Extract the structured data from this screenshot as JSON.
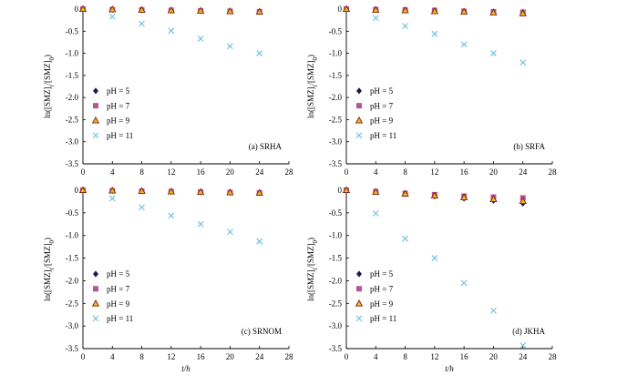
{
  "figure": {
    "x_axis_title": "t/h",
    "y_axis_title": "ln([SMZ]t/[SMZ]0)"
  },
  "colors": {
    "pH5": "#1f1a4a",
    "pH7": "#b5559a",
    "pH9_fill": "#f2b81b",
    "pH9_edge": "#7a2010",
    "pH11": "#6cc0d8",
    "axis": "#000000"
  },
  "legend_labels": [
    "pH = 5",
    "pH = 7",
    "pH = 9",
    "pH = 11"
  ],
  "chart_data": [
    {
      "type": "scatter",
      "panel_label": "(a) SRHA",
      "xlabel": "",
      "ylabel": "ln([SMZ]t/[SMZ]0)",
      "xlim": [
        0,
        28
      ],
      "ylim": [
        -3.5,
        0
      ],
      "x_ticks": [
        "0",
        "4",
        "8",
        "12",
        "16",
        "20",
        "24",
        "28"
      ],
      "y_ticks": [
        "0",
        "-0.5",
        "-1.0",
        "-1.5",
        "-2.0",
        "-2.5",
        "-3.0",
        "-3.5"
      ],
      "x": [
        0,
        4,
        8,
        12,
        16,
        20,
        24
      ],
      "series": [
        {
          "name": "pH = 5",
          "values": [
            0,
            -0.01,
            -0.02,
            -0.03,
            -0.04,
            -0.05,
            -0.06
          ]
        },
        {
          "name": "pH = 7",
          "values": [
            0,
            -0.01,
            -0.02,
            -0.03,
            -0.04,
            -0.05,
            -0.06
          ]
        },
        {
          "name": "pH = 9",
          "values": [
            0,
            -0.01,
            -0.02,
            -0.03,
            -0.04,
            -0.05,
            -0.06
          ]
        },
        {
          "name": "pH = 11",
          "values": [
            0,
            -0.17,
            -0.33,
            -0.49,
            -0.67,
            -0.84,
            -1.0
          ]
        }
      ],
      "legend_position": "lower-left",
      "grid": false
    },
    {
      "type": "scatter",
      "panel_label": "(b) SRFA",
      "xlabel": "",
      "ylabel": "ln([SMZ]t/[SMZ]0)",
      "xlim": [
        0,
        28
      ],
      "ylim": [
        -3.5,
        0
      ],
      "x_ticks": [
        "0",
        "4",
        "8",
        "12",
        "16",
        "20",
        "24",
        "28"
      ],
      "y_ticks": [
        "0",
        "-0.5",
        "-1.0",
        "-1.5",
        "-2.0",
        "-2.5",
        "-3.0",
        "-3.5"
      ],
      "x": [
        0,
        4,
        8,
        12,
        16,
        20,
        24
      ],
      "series": [
        {
          "name": "pH = 5",
          "values": [
            0,
            -0.01,
            -0.02,
            -0.03,
            -0.05,
            -0.06,
            -0.07
          ]
        },
        {
          "name": "pH = 7",
          "values": [
            0,
            -0.01,
            -0.02,
            -0.03,
            -0.05,
            -0.06,
            -0.07
          ]
        },
        {
          "name": "pH = 9",
          "values": [
            0,
            -0.02,
            -0.03,
            -0.05,
            -0.06,
            -0.08,
            -0.1
          ]
        },
        {
          "name": "pH = 11",
          "values": [
            0,
            -0.2,
            -0.38,
            -0.56,
            -0.8,
            -1.0,
            -1.21
          ]
        }
      ],
      "legend_position": "lower-left",
      "grid": false
    },
    {
      "type": "scatter",
      "panel_label": "(c) SRNOM",
      "xlabel": "t/h",
      "ylabel": "ln([SMZ]t/[SMZ]0)",
      "xlim": [
        0,
        28
      ],
      "ylim": [
        -3.5,
        0
      ],
      "x_ticks": [
        "0",
        "4",
        "8",
        "12",
        "16",
        "20",
        "24",
        "28"
      ],
      "y_ticks": [
        "0",
        "-0.5",
        "-1.0",
        "-1.5",
        "-2.0",
        "-2.5",
        "-3.0",
        "-3.5"
      ],
      "x": [
        0,
        4,
        8,
        12,
        16,
        20,
        24
      ],
      "series": [
        {
          "name": "pH = 5",
          "values": [
            0,
            -0.01,
            -0.02,
            -0.03,
            -0.04,
            -0.05,
            -0.06
          ]
        },
        {
          "name": "pH = 7",
          "values": [
            0,
            -0.01,
            -0.02,
            -0.03,
            -0.04,
            -0.05,
            -0.06
          ]
        },
        {
          "name": "pH = 9",
          "values": [
            0,
            -0.01,
            -0.02,
            -0.03,
            -0.04,
            -0.05,
            -0.06
          ]
        },
        {
          "name": "pH = 11",
          "values": [
            0,
            -0.18,
            -0.38,
            -0.56,
            -0.75,
            -0.92,
            -1.13
          ]
        }
      ],
      "legend_position": "lower-left",
      "grid": false
    },
    {
      "type": "scatter",
      "panel_label": "(d) JKHA",
      "xlabel": "t/h",
      "ylabel": "ln([SMZ]t/[SMZ]0)",
      "xlim": [
        0,
        28
      ],
      "ylim": [
        -3.5,
        0
      ],
      "x_ticks": [
        "0",
        "4",
        "8",
        "12",
        "16",
        "20",
        "24",
        "28"
      ],
      "y_ticks": [
        "0",
        "-0.5",
        "-1.0",
        "-1.5",
        "-2.0",
        "-2.5",
        "-3.0",
        "-3.5"
      ],
      "x": [
        0,
        4,
        8,
        12,
        16,
        20,
        24
      ],
      "series": [
        {
          "name": "pH = 5",
          "values": [
            0,
            -0.03,
            -0.08,
            -0.13,
            -0.18,
            -0.23,
            -0.29
          ]
        },
        {
          "name": "pH = 7",
          "values": [
            0,
            -0.03,
            -0.07,
            -0.1,
            -0.13,
            -0.15,
            -0.17
          ]
        },
        {
          "name": "pH = 9",
          "values": [
            0,
            -0.04,
            -0.08,
            -0.12,
            -0.16,
            -0.2,
            -0.24
          ]
        },
        {
          "name": "pH = 11",
          "values": [
            0,
            -0.51,
            -1.07,
            -1.5,
            -2.05,
            -2.66,
            -3.43
          ]
        }
      ],
      "legend_position": "lower-left",
      "grid": false
    }
  ]
}
